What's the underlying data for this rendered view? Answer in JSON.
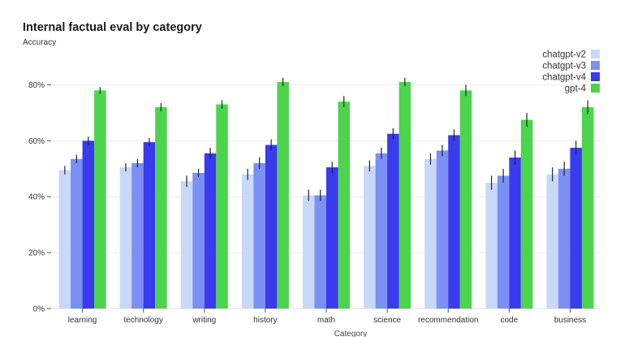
{
  "chart_data": {
    "type": "bar",
    "title": "Internal factual eval by category",
    "subtitle": "Accuracy",
    "xlabel": "Category",
    "ylabel": "Accuracy",
    "ylim": [
      0,
      0.9
    ],
    "yticks": [
      0,
      0.2,
      0.4,
      0.6,
      0.8
    ],
    "ytick_labels": [
      "0%",
      "20%",
      "40%",
      "60%",
      "80%"
    ],
    "grid": true,
    "legend_position": "top-right",
    "categories": [
      "learning",
      "technology",
      "writing",
      "history",
      "math",
      "science",
      "recommendation",
      "code",
      "business"
    ],
    "series": [
      {
        "name": "chatgpt-v2",
        "color": "#c8d8f8",
        "values": [
          0.495,
          0.505,
          0.455,
          0.48,
          0.405,
          0.51,
          0.535,
          0.45,
          0.48
        ],
        "errors": [
          0.015,
          0.015,
          0.02,
          0.02,
          0.02,
          0.02,
          0.02,
          0.025,
          0.025
        ]
      },
      {
        "name": "chatgpt-v3",
        "color": "#7b90f4",
        "values": [
          0.535,
          0.52,
          0.485,
          0.52,
          0.405,
          0.555,
          0.565,
          0.475,
          0.5
        ],
        "errors": [
          0.015,
          0.015,
          0.015,
          0.02,
          0.02,
          0.02,
          0.02,
          0.025,
          0.025
        ]
      },
      {
        "name": "chatgpt-v4",
        "color": "#3a3aee",
        "values": [
          0.6,
          0.595,
          0.555,
          0.585,
          0.505,
          0.625,
          0.62,
          0.54,
          0.575
        ],
        "errors": [
          0.015,
          0.015,
          0.02,
          0.02,
          0.02,
          0.02,
          0.02,
          0.025,
          0.025
        ]
      },
      {
        "name": "gpt-4",
        "color": "#4cd44c",
        "values": [
          0.78,
          0.72,
          0.73,
          0.81,
          0.74,
          0.81,
          0.78,
          0.675,
          0.72
        ],
        "errors": [
          0.012,
          0.015,
          0.015,
          0.015,
          0.02,
          0.015,
          0.02,
          0.025,
          0.025
        ]
      }
    ]
  }
}
